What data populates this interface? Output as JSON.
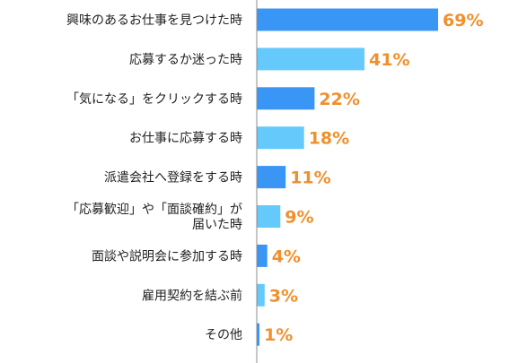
{
  "chart_data": {
    "type": "bar",
    "orientation": "horizontal",
    "categories": [
      [
        "興味のあるお仕事を見つけた時"
      ],
      [
        "応募するか迷った時"
      ],
      [
        "「気になる」をクリックする時"
      ],
      [
        "お仕事に応募する時"
      ],
      [
        "派遣会社へ登録をする時"
      ],
      [
        "「応募歓迎」や「面談確約」が",
        "届いた時"
      ],
      [
        "面談や説明会に参加する時"
      ],
      [
        "雇用契約を結ぶ前"
      ],
      [
        "その他"
      ]
    ],
    "values": [
      69,
      41,
      22,
      18,
      11,
      9,
      4,
      3,
      1
    ],
    "value_labels": [
      "69%",
      "41%",
      "22%",
      "18%",
      "11%",
      "9%",
      "4%",
      "3%",
      "1%"
    ],
    "xlim": [
      0,
      100
    ],
    "grid": false,
    "colors": {
      "bar_dark": "#3a96f5",
      "bar_light": "#66c9fb",
      "value_label": "#f0902c",
      "axis": "#8c8c8c"
    }
  }
}
